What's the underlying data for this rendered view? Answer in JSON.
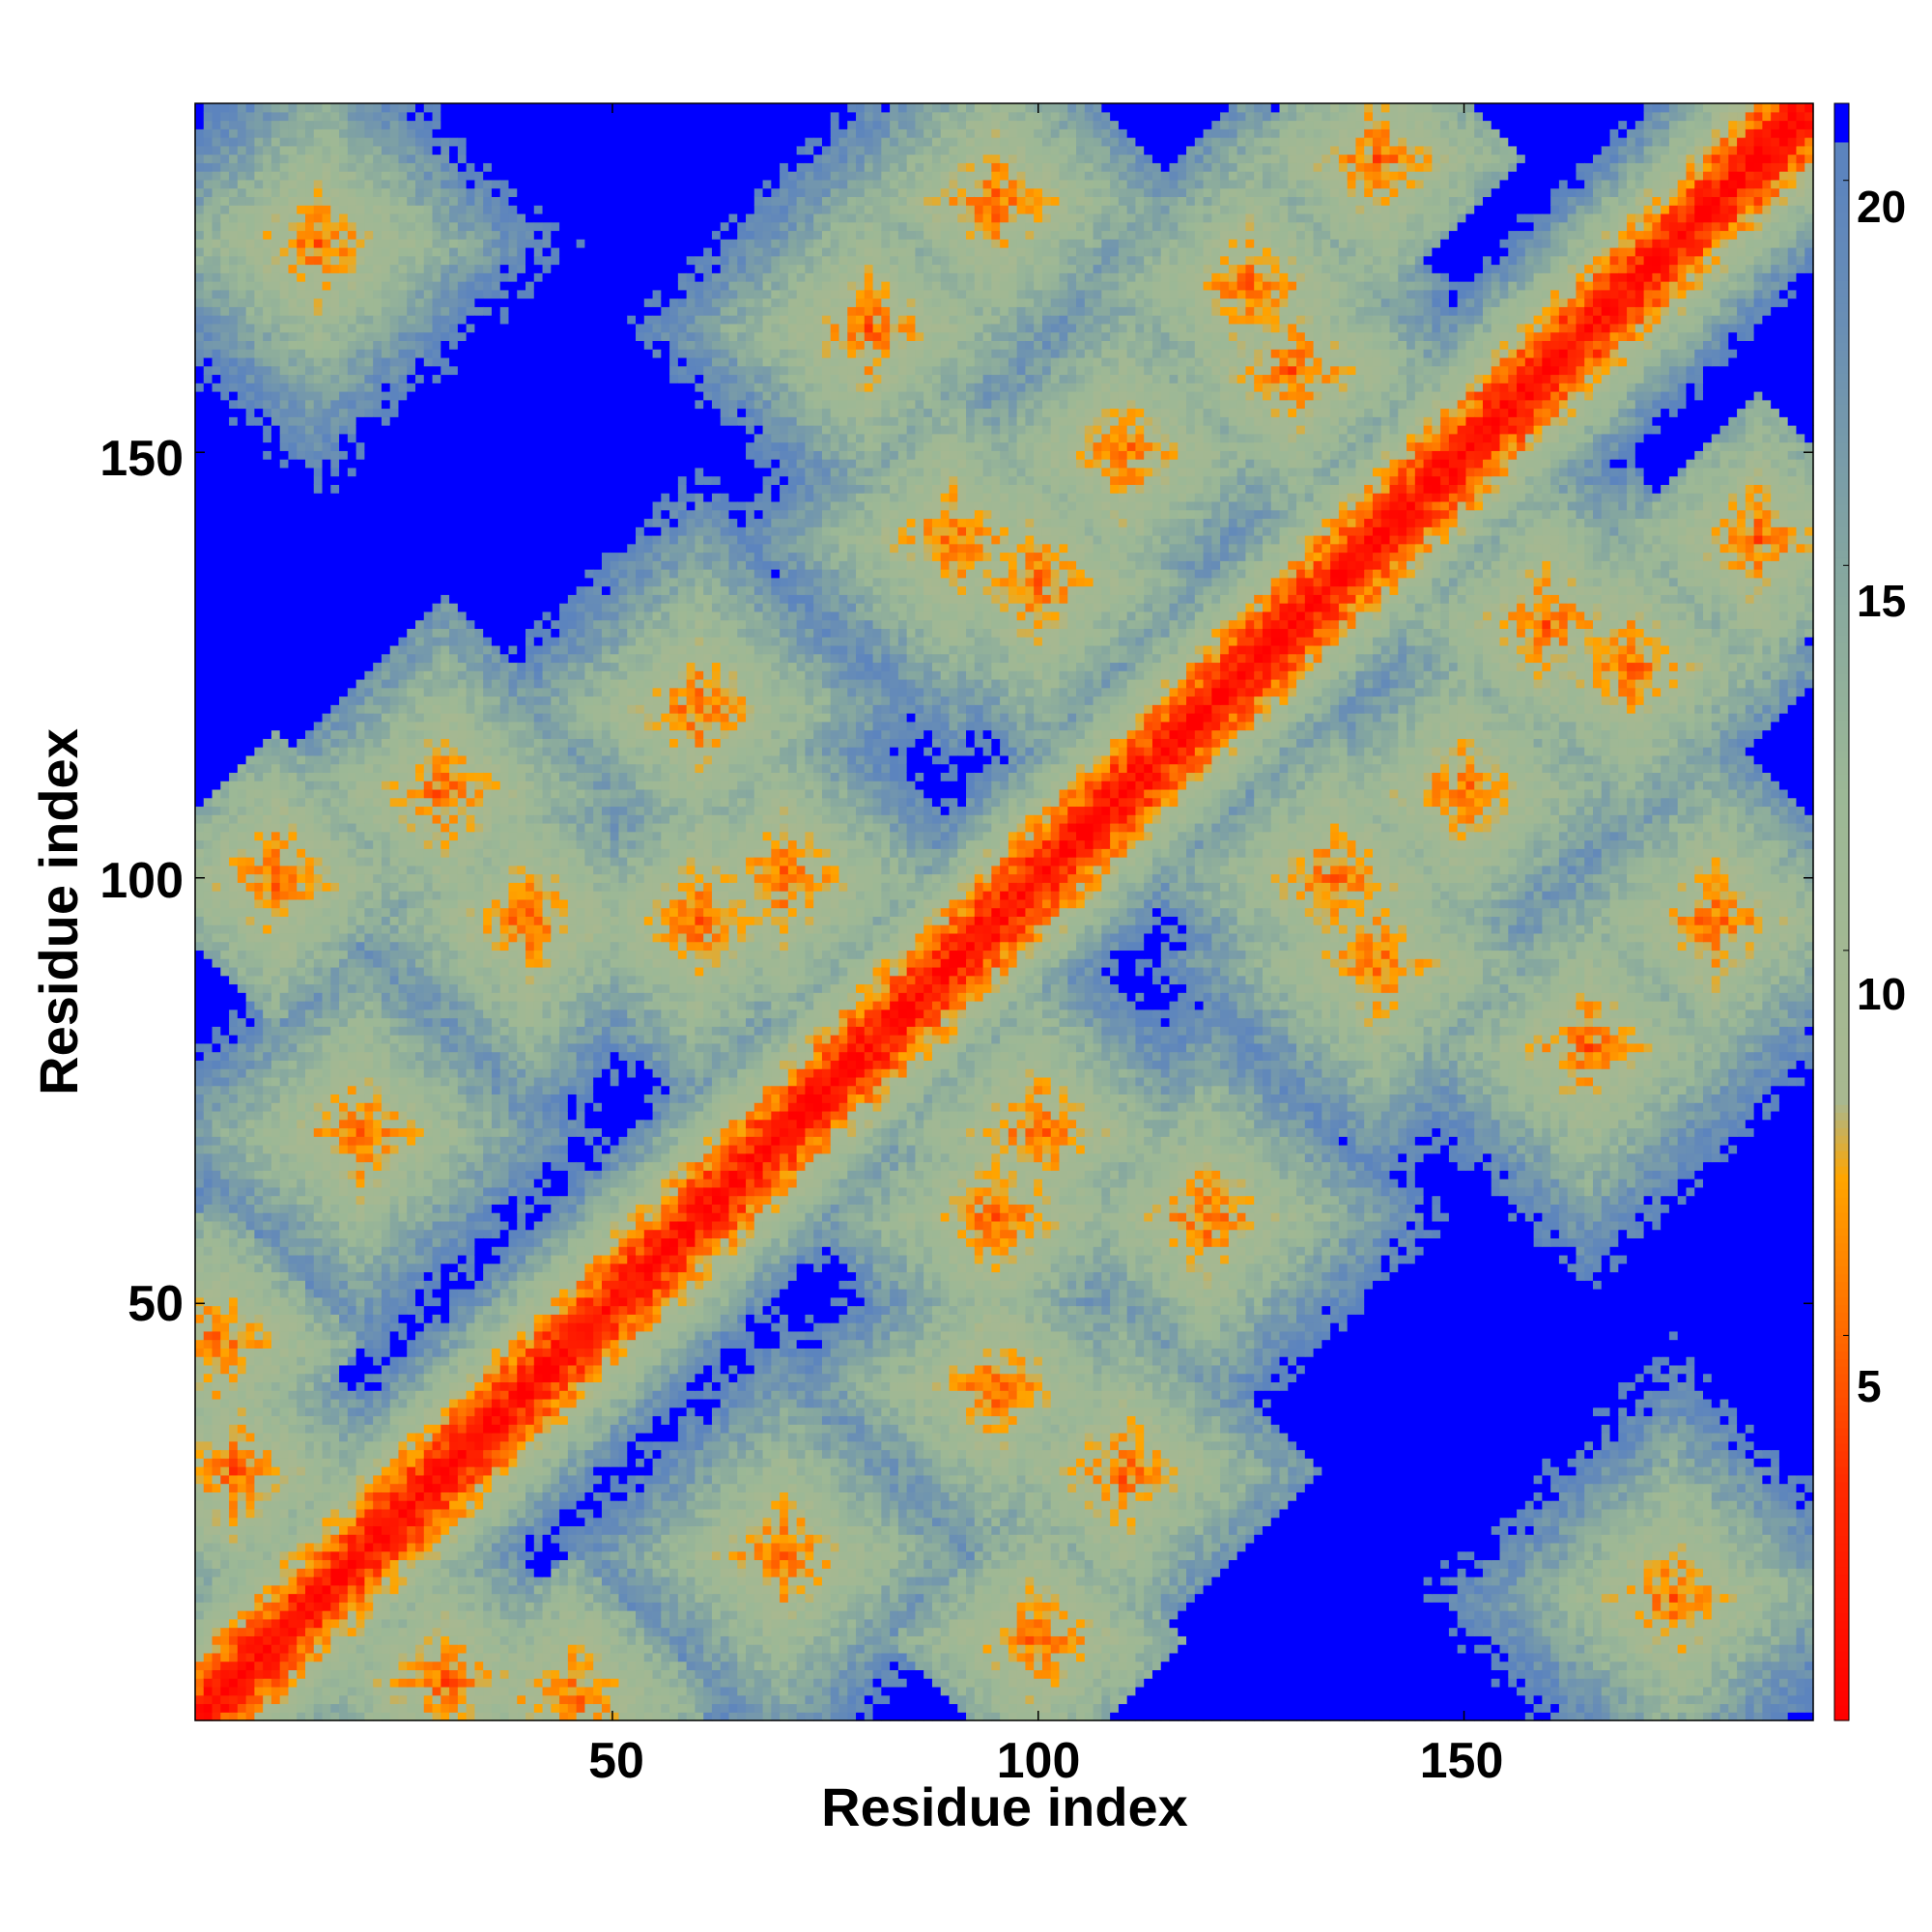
{
  "chart_data": {
    "type": "heatmap",
    "title": "",
    "xlabel": "Residue index",
    "ylabel": "Residue index",
    "x_range": [
      1,
      191
    ],
    "y_range": [
      1,
      191
    ],
    "x_ticks": [
      50,
      100,
      150
    ],
    "y_ticks": [
      50,
      100,
      150
    ],
    "colorbar": {
      "range": [
        0,
        21
      ],
      "ticks": [
        5,
        10,
        15,
        20
      ],
      "stops": [
        {
          "value": 0,
          "color": "#ff0000"
        },
        {
          "value": 3,
          "color": "#ff2a00"
        },
        {
          "value": 5,
          "color": "#ff6a00"
        },
        {
          "value": 7,
          "color": "#ffa500"
        },
        {
          "value": 8,
          "color": "#a8b890"
        },
        {
          "value": 12,
          "color": "#9cb896"
        },
        {
          "value": 15,
          "color": "#84a6a0"
        },
        {
          "value": 18,
          "color": "#6a8fb4"
        },
        {
          "value": 20,
          "color": "#5c84be"
        },
        {
          "value": 20.5,
          "color": "#0000ff"
        }
      ]
    },
    "description_values": {
      "matrix_size": 191,
      "diagonal_value": 0,
      "far_value": 21
    }
  },
  "labels": {
    "xlabel": "Residue index",
    "ylabel": "Residue index",
    "x_tick_50": "50",
    "x_tick_100": "100",
    "x_tick_150": "150",
    "y_tick_50": "50",
    "y_tick_100": "100",
    "y_tick_150": "150",
    "cb_tick_5": "5",
    "cb_tick_10": "10",
    "cb_tick_15": "15",
    "cb_tick_20": "20"
  }
}
